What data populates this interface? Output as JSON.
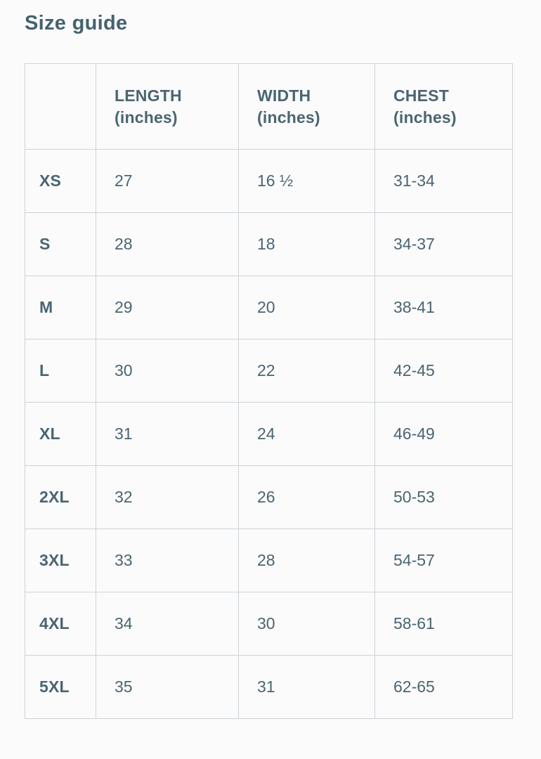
{
  "page": {
    "title": "Size guide",
    "colors": {
      "background": "#fbfbfb",
      "text": "#4a6572",
      "border": "#ccd3d9"
    }
  },
  "table": {
    "headers": [
      {
        "label": "",
        "unit": ""
      },
      {
        "label": "LENGTH",
        "unit": "(inches)"
      },
      {
        "label": "WIDTH",
        "unit": "(inches)"
      },
      {
        "label": "CHEST",
        "unit": "(inches)"
      }
    ],
    "rows": [
      {
        "size": "XS",
        "length": "27",
        "width": "16 ½",
        "chest": "31-34"
      },
      {
        "size": "S",
        "length": "28",
        "width": "18",
        "chest": "34-37"
      },
      {
        "size": "M",
        "length": "29",
        "width": "20",
        "chest": "38-41"
      },
      {
        "size": "L",
        "length": "30",
        "width": "22",
        "chest": "42-45"
      },
      {
        "size": "XL",
        "length": "31",
        "width": "24",
        "chest": "46-49"
      },
      {
        "size": "2XL",
        "length": "32",
        "width": "26",
        "chest": "50-53"
      },
      {
        "size": "3XL",
        "length": "33",
        "width": "28",
        "chest": "54-57"
      },
      {
        "size": "4XL",
        "length": "34",
        "width": "30",
        "chest": "58-61"
      },
      {
        "size": "5XL",
        "length": "35",
        "width": "31",
        "chest": "62-65"
      }
    ]
  }
}
